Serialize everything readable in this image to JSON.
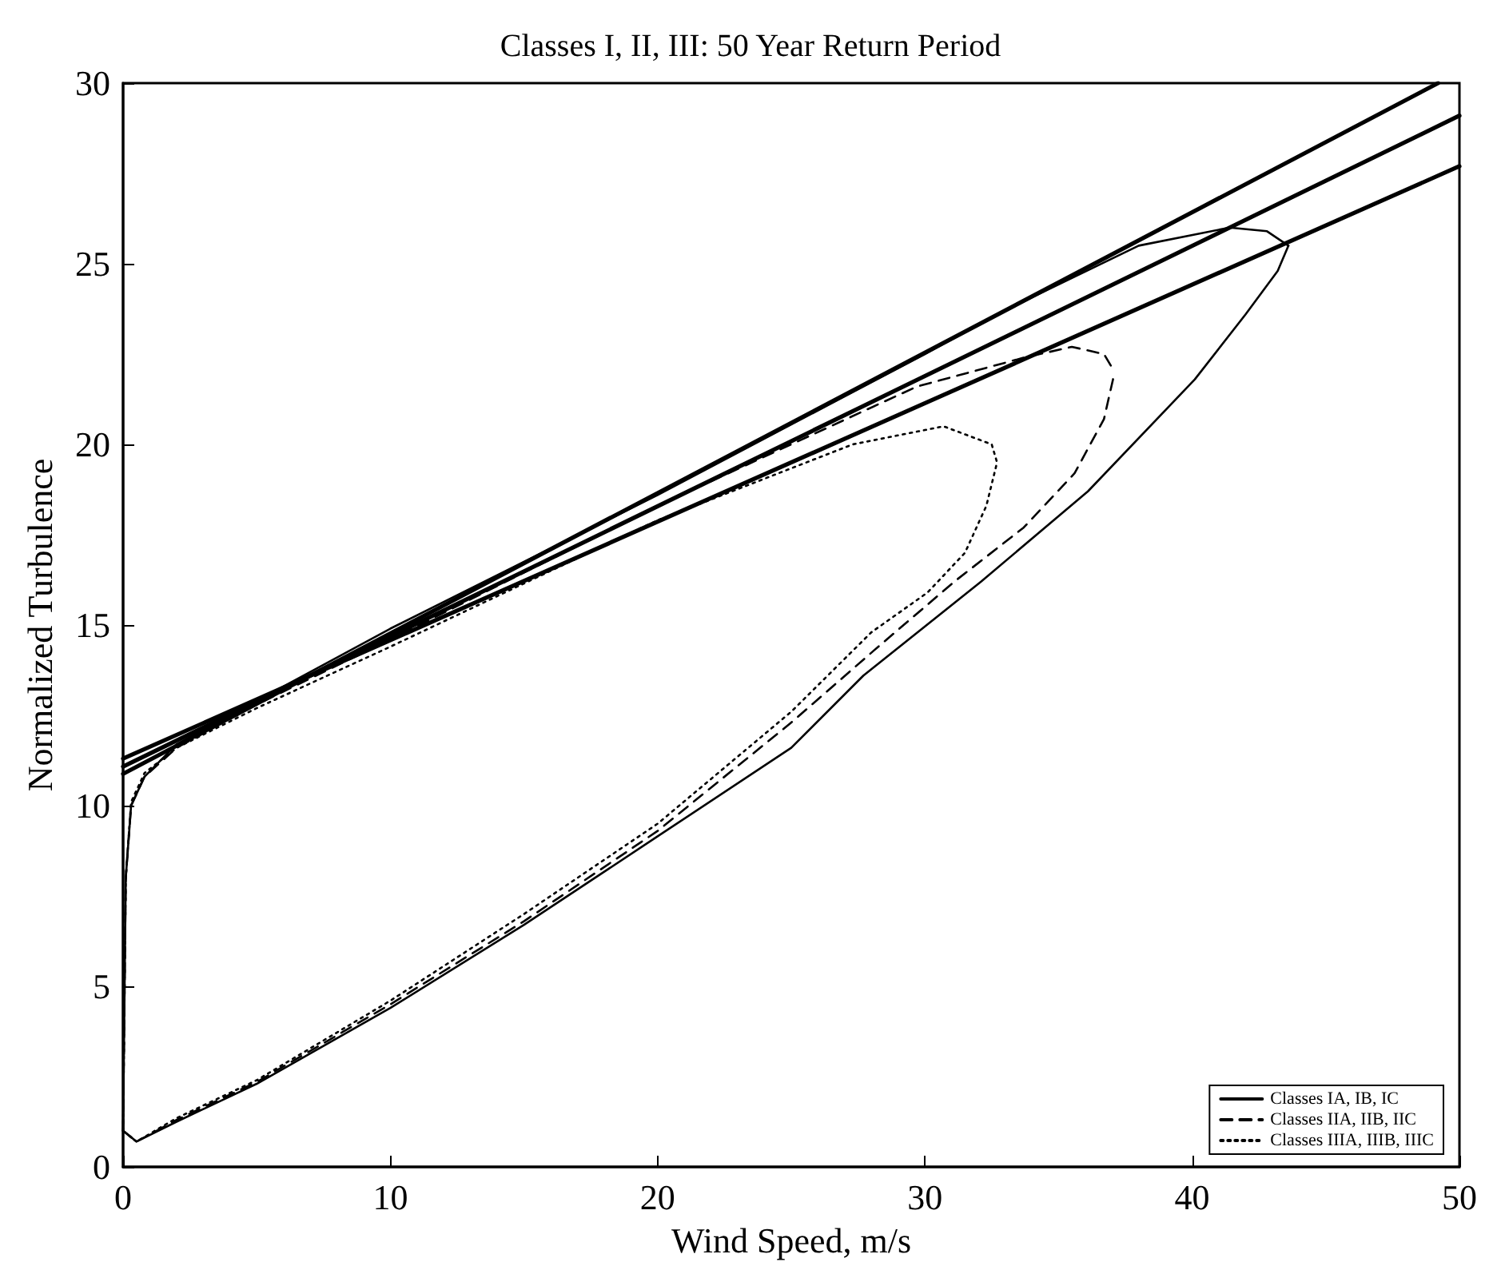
{
  "chart_data": {
    "type": "line",
    "title": "Classes I, II, III: 50 Year Return Period",
    "xlabel": "Wind Speed, m/s",
    "ylabel": "Normalized Turbulence",
    "xlim": [
      0,
      50
    ],
    "xticks": [
      0,
      10,
      20,
      30,
      40,
      50
    ],
    "ylim": [
      0,
      30
    ],
    "yticks": [
      0,
      5,
      10,
      15,
      20,
      25,
      30
    ],
    "grid": false,
    "legend": "bottom right",
    "marker": "none",
    "series": [
      {
        "color": "#000000",
        "line_style": "solid",
        "x": [
          0,
          49.2
        ],
        "values": [
          10.88,
          30
        ]
      },
      {
        "color": "#000000",
        "line_style": "solid",
        "x": [
          0,
          50
        ],
        "values": [
          11.08,
          29.1
        ]
      },
      {
        "color": "#000000",
        "line_style": "solid",
        "x": [
          0,
          50
        ],
        "values": [
          11.3,
          27.7
        ]
      },
      {
        "name": "Classes IA, IB, IC",
        "color": "#000000",
        "line_style": "solid",
        "x": [
          0,
          0.5,
          2,
          5,
          10,
          15,
          20,
          25,
          27.7,
          32.1,
          36.1,
          40.1,
          42,
          43.2,
          43.6
        ],
        "values": [
          1.0,
          0.7,
          1.25,
          2.3,
          4.4,
          6.7,
          9.15,
          11.6,
          13.6,
          16.2,
          18.7,
          21.8,
          23.6,
          24.8,
          25.5
        ]
      },
      {
        "name": "Classes IIA, IIB, IIC",
        "color": "#000000",
        "line_style": "dashed",
        "x": [
          0,
          0.5,
          2,
          5,
          10,
          15,
          20,
          25,
          28.1,
          31.1,
          33.7,
          35.6,
          36.7,
          37.1
        ],
        "values": [
          1.0,
          0.7,
          1.3,
          2.35,
          4.5,
          6.8,
          9.3,
          12.3,
          14.3,
          16.2,
          17.7,
          19.2,
          20.7,
          22.0
        ]
      },
      {
        "name": "Classes IIIA, IIIB, IIIC",
        "color": "#000000",
        "line_style": "dotted",
        "x": [
          0,
          0.5,
          2,
          5,
          10,
          15,
          20,
          25,
          28,
          30.1,
          31.5,
          32.3,
          32.7
        ],
        "values": [
          1.0,
          0.7,
          1.35,
          2.4,
          4.6,
          7.0,
          9.5,
          12.6,
          14.8,
          15.9,
          17.0,
          18.3,
          19.5
        ]
      },
      {
        "color": "#000000",
        "line_style": "solid",
        "x": [
          0,
          0.1,
          0.3,
          0.8,
          2,
          5,
          10,
          20,
          30,
          32.7,
          38,
          41.4,
          42.8,
          43.6
        ],
        "values": [
          1.0,
          8,
          10,
          10.8,
          11.7,
          12.9,
          14.9,
          18.6,
          22.5,
          23.6,
          25.5,
          26.0,
          25.9,
          25.5
        ]
      },
      {
        "color": "#000000",
        "line_style": "dashed",
        "x": [
          0,
          0.1,
          0.3,
          0.8,
          2,
          5,
          10,
          20,
          29.7,
          33.7,
          35.5,
          36.7,
          37.1
        ],
        "values": [
          1.0,
          8,
          10,
          10.8,
          11.6,
          12.8,
          14.6,
          18.3,
          21.6,
          22.4,
          22.7,
          22.5,
          22.0
        ]
      },
      {
        "color": "#000000",
        "line_style": "dotted",
        "x": [
          0,
          0.1,
          0.3,
          0.8,
          2,
          5,
          10,
          20,
          27.3,
          30.7,
          32.5,
          32.7
        ],
        "values": [
          1.0,
          8,
          10.1,
          10.9,
          11.6,
          12.7,
          14.4,
          17.9,
          20.0,
          20.5,
          20.0,
          19.5
        ]
      }
    ]
  }
}
